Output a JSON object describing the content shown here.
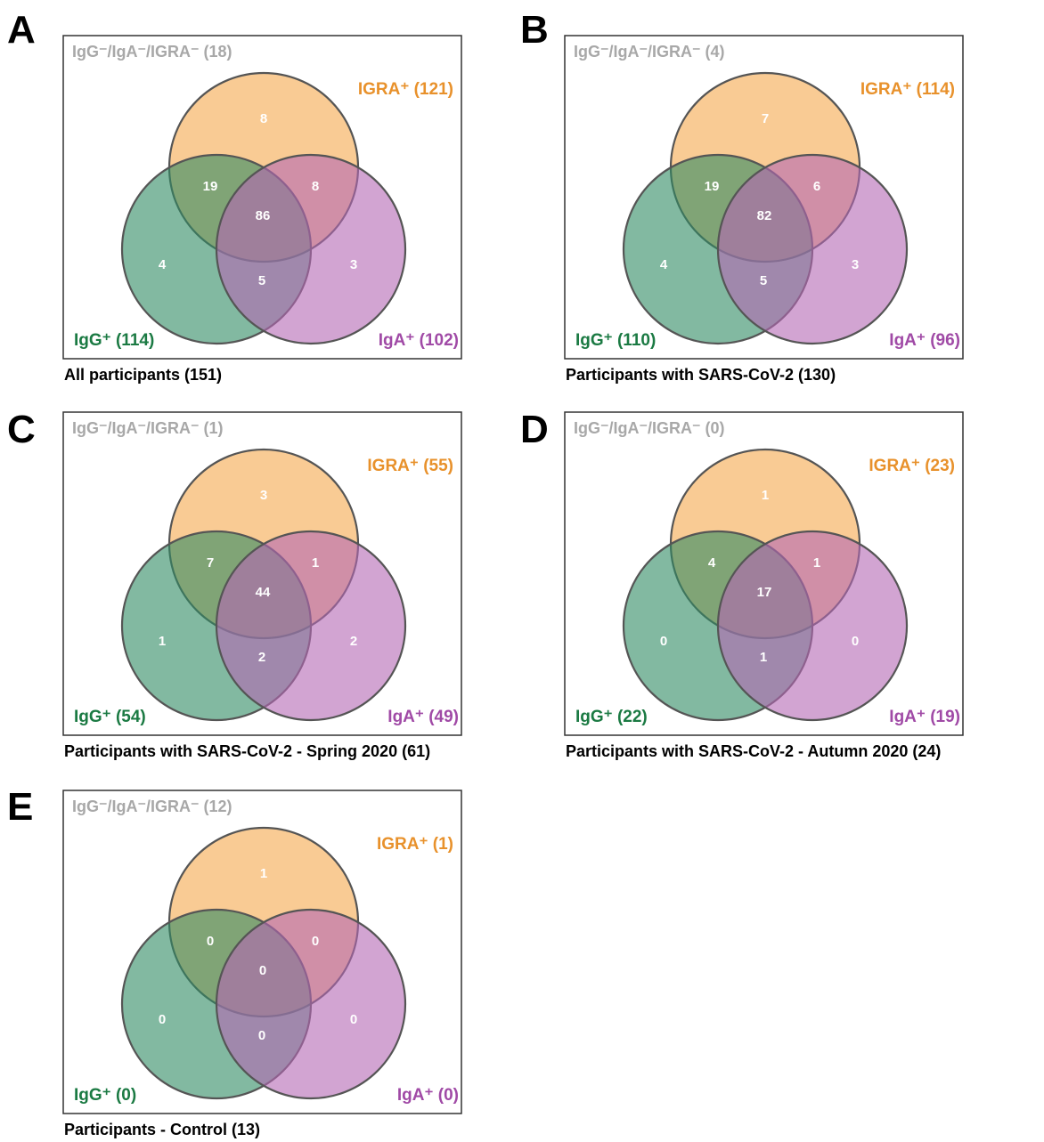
{
  "colors": {
    "igra": "#f5a84c",
    "igg": "#2e8b62",
    "iga": "#b468b4",
    "igra_label": "#e8912b",
    "igg_label": "#1b7a43",
    "iga_label": "#a04aa6",
    "negative_label": "#a8a8a8",
    "frame": "#333333",
    "circle_stroke": "#555555",
    "region_text": "#ffffff"
  },
  "panels": [
    {
      "letter": "A",
      "negative_label": "IgG⁻/IgA⁻/IGRA⁻ (18)",
      "igra_label": "IGRA⁺ (121)",
      "igg_label": "IgG⁺ (114)",
      "iga_label": "IgA⁺ (102)",
      "caption": "All participants (151)",
      "regions": {
        "igra_only": "8",
        "igg_igra": "19",
        "igra_iga": "8",
        "all": "86",
        "igg_only": "4",
        "iga_only": "3",
        "igg_iga": "5"
      }
    },
    {
      "letter": "B",
      "negative_label": "IgG⁻/IgA⁻/IGRA⁻ (4)",
      "igra_label": "IGRA⁺ (114)",
      "igg_label": "IgG⁺ (110)",
      "iga_label": "IgA⁺ (96)",
      "caption": "Participants with SARS-CoV-2 (130)",
      "regions": {
        "igra_only": "7",
        "igg_igra": "19",
        "igra_iga": "6",
        "all": "82",
        "igg_only": "4",
        "iga_only": "3",
        "igg_iga": "5"
      }
    },
    {
      "letter": "C",
      "negative_label": "IgG⁻/IgA⁻/IGRA⁻ (1)",
      "igra_label": "IGRA⁺ (55)",
      "igg_label": "IgG⁺ (54)",
      "iga_label": "IgA⁺ (49)",
      "caption": "Participants with SARS-CoV-2 - Spring 2020 (61)",
      "regions": {
        "igra_only": "3",
        "igg_igra": "7",
        "igra_iga": "1",
        "all": "44",
        "igg_only": "1",
        "iga_only": "2",
        "igg_iga": "2"
      }
    },
    {
      "letter": "D",
      "negative_label": "IgG⁻/IgA⁻/IGRA⁻ (0)",
      "igra_label": "IGRA⁺ (23)",
      "igg_label": "IgG⁺ (22)",
      "iga_label": "IgA⁺ (19)",
      "caption": "Participants with SARS-CoV-2 - Autumn 2020 (24)",
      "regions": {
        "igra_only": "1",
        "igg_igra": "4",
        "igra_iga": "1",
        "all": "17",
        "igg_only": "0",
        "iga_only": "0",
        "igg_iga": "1"
      }
    },
    {
      "letter": "E",
      "negative_label": "IgG⁻/IgA⁻/IGRA⁻ (12)",
      "igra_label": "IGRA⁺ (1)",
      "igg_label": "IgG⁺ (0)",
      "iga_label": "IgA⁺ (0)",
      "caption": "Participants - Control (13)",
      "regions": {
        "igra_only": "1",
        "igg_igra": "0",
        "igra_iga": "0",
        "all": "0",
        "igg_only": "0",
        "iga_only": "0",
        "igg_iga": "0"
      }
    }
  ]
}
